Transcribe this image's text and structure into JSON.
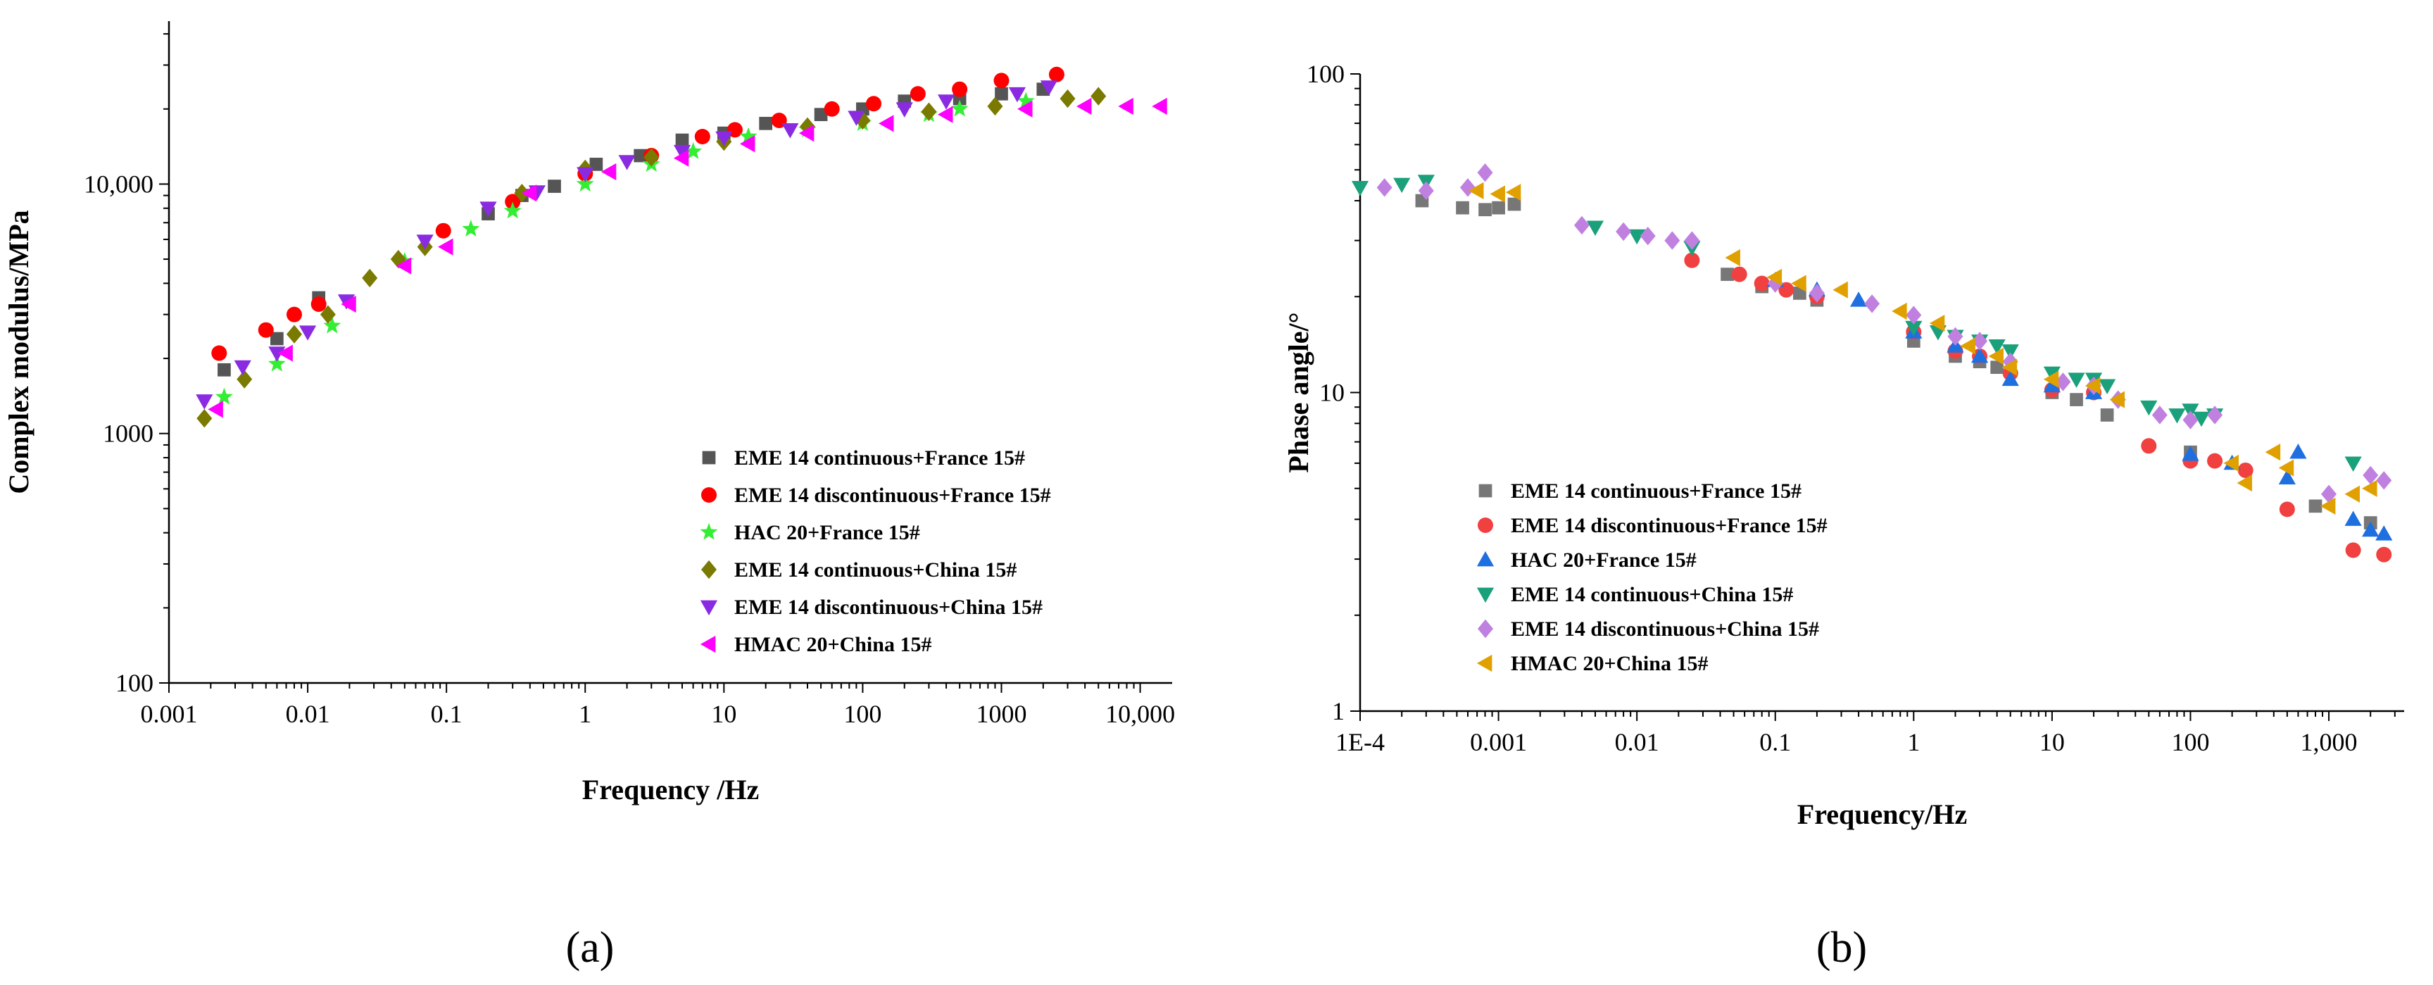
{
  "chart_data": [
    {
      "type": "scatter",
      "panel_label": "(a)",
      "xscale": "log",
      "yscale": "log",
      "xlabel": "Frequency /Hz",
      "ylabel": "Complex modulus/MPa",
      "xlim": [
        0.001,
        17000
      ],
      "ylim": [
        100,
        45000
      ],
      "xticks": [
        {
          "v": 0.001,
          "label": "0.001"
        },
        {
          "v": 0.01,
          "label": "0.01"
        },
        {
          "v": 0.1,
          "label": "0.1"
        },
        {
          "v": 1,
          "label": "1"
        },
        {
          "v": 10,
          "label": "10"
        },
        {
          "v": 100,
          "label": "100"
        },
        {
          "v": 1000,
          "label": "1000"
        },
        {
          "v": 10000,
          "label": "10,000"
        }
      ],
      "yticks": [
        {
          "v": 100,
          "label": "100"
        },
        {
          "v": 1000,
          "label": "1000"
        },
        {
          "v": 10000,
          "label": "10,000"
        }
      ],
      "legend_position": "bottom-right",
      "series": [
        {
          "name": "EME 14 continuous+France 15#",
          "marker": "square",
          "color": "#555555",
          "x": [
            0.0025,
            0.006,
            0.012,
            0.2,
            0.35,
            0.6,
            1.2,
            2.5,
            5,
            10,
            20,
            50,
            100,
            200,
            500,
            1000,
            2000
          ],
          "y": [
            1800,
            2400,
            3500,
            7600,
            9000,
            9800,
            12000,
            13000,
            15000,
            16000,
            17500,
            19000,
            20000,
            21500,
            22000,
            23000,
            24000
          ]
        },
        {
          "name": "EME 14 discontinuous+France 15#",
          "marker": "circle",
          "color": "#ff0000",
          "x": [
            0.0023,
            0.005,
            0.008,
            0.012,
            0.095,
            0.3,
            1,
            3,
            7,
            12,
            25,
            60,
            120,
            250,
            500,
            1000,
            2500
          ],
          "y": [
            2100,
            2600,
            3000,
            3300,
            6500,
            8500,
            11000,
            13000,
            15500,
            16500,
            18000,
            20000,
            21000,
            23000,
            24000,
            26000,
            27500
          ]
        },
        {
          "name": "HAC 20+France 15#",
          "marker": "star",
          "color": "#33ee33",
          "x": [
            0.0025,
            0.006,
            0.015,
            0.05,
            0.15,
            0.3,
            1,
            3,
            6,
            15,
            40,
            100,
            300,
            500,
            1500
          ],
          "y": [
            1400,
            1900,
            2700,
            4900,
            6600,
            7800,
            10000,
            12000,
            13500,
            15500,
            16500,
            17500,
            19000,
            20000,
            21500
          ]
        },
        {
          "name": "EME 14 continuous+China 15#",
          "marker": "diamond",
          "color": "#7a7a00",
          "x": [
            0.0018,
            0.0035,
            0.008,
            0.014,
            0.028,
            0.045,
            0.07,
            0.35,
            1,
            3,
            10,
            40,
            100,
            300,
            900,
            3000,
            5000
          ],
          "y": [
            1150,
            1650,
            2500,
            3000,
            4200,
            5000,
            5600,
            9200,
            11500,
            12800,
            14800,
            17000,
            18000,
            19500,
            20500,
            22000,
            22500
          ]
        },
        {
          "name": "EME 14 discontinuous+China 15#",
          "marker": "triangle-down",
          "color": "#8a2be2",
          "x": [
            0.0018,
            0.0034,
            0.006,
            0.01,
            0.019,
            0.07,
            0.2,
            0.45,
            1,
            2,
            5,
            10,
            30,
            90,
            200,
            400,
            1300,
            2200
          ],
          "y": [
            1350,
            1850,
            2100,
            2550,
            3400,
            5900,
            8000,
            9300,
            11000,
            12300,
            13500,
            15300,
            16500,
            18500,
            20000,
            21500,
            23000,
            24500
          ]
        },
        {
          "name": "HMAC 20+China 15#",
          "marker": "triangle-left",
          "color": "#ff00ff",
          "x": [
            0.0022,
            0.007,
            0.02,
            0.05,
            0.1,
            0.4,
            1.5,
            5,
            15,
            40,
            150,
            400,
            1500,
            4000,
            8000,
            14000
          ],
          "y": [
            1250,
            2100,
            3300,
            4700,
            5600,
            9200,
            11200,
            12700,
            14500,
            16000,
            17500,
            19000,
            20000,
            20500,
            20500,
            20500
          ]
        }
      ]
    },
    {
      "type": "scatter",
      "panel_label": "(b)",
      "xscale": "log",
      "yscale": "log",
      "xlabel": "Frequency/Hz",
      "ylabel": "Phase angle/°",
      "xlim": [
        0.0001,
        3500
      ],
      "ylim": [
        1,
        100
      ],
      "xticks": [
        {
          "v": 0.0001,
          "label": "1E-4"
        },
        {
          "v": 0.001,
          "label": "0.001"
        },
        {
          "v": 0.01,
          "label": "0.01"
        },
        {
          "v": 0.1,
          "label": "0.1"
        },
        {
          "v": 1,
          "label": "1"
        },
        {
          "v": 10,
          "label": "10"
        },
        {
          "v": 100,
          "label": "100"
        },
        {
          "v": 1000,
          "label": "1,000"
        }
      ],
      "yticks": [
        {
          "v": 1,
          "label": "1"
        },
        {
          "v": 10,
          "label": "10"
        },
        {
          "v": 100,
          "label": "100"
        }
      ],
      "legend_position": "bottom-left",
      "series": [
        {
          "name": "EME 14 continuous+France 15#",
          "marker": "square",
          "color": "#777777",
          "x": [
            0.00028,
            0.00055,
            0.0008,
            0.001,
            0.0013,
            0.045,
            0.08,
            0.15,
            0.2,
            1,
            2,
            3,
            4,
            10,
            15,
            25,
            100,
            800,
            2000
          ],
          "y": [
            40,
            38,
            37.5,
            38,
            39,
            23.5,
            21.5,
            20.5,
            19.5,
            14.5,
            13,
            12.5,
            12,
            10,
            9.5,
            8.5,
            6.5,
            4.4,
            3.9
          ]
        },
        {
          "name": "EME 14 discontinuous+France 15#",
          "marker": "circle",
          "color": "#f04040",
          "x": [
            0.025,
            0.055,
            0.08,
            0.12,
            0.2,
            1,
            2,
            3,
            5,
            10,
            20,
            50,
            100,
            150,
            250,
            500,
            1500,
            2500
          ],
          "y": [
            26,
            23.5,
            22,
            21,
            20,
            15.5,
            13.5,
            13,
            11.5,
            10.2,
            10,
            6.8,
            6.1,
            6.1,
            5.7,
            4.3,
            3.2,
            3.1
          ]
        },
        {
          "name": "HAC 20+France 15#",
          "marker": "triangle-up",
          "color": "#1e6fe0",
          "x": [
            0.1,
            0.2,
            0.4,
            1,
            2,
            3,
            5,
            10,
            20,
            100,
            200,
            500,
            600,
            1500,
            2000,
            2500
          ],
          "y": [
            22.5,
            21,
            19.5,
            15.5,
            14,
            13,
            11,
            10.5,
            10,
            6.4,
            6,
            5.4,
            6.5,
            4,
            3.7,
            3.6
          ]
        },
        {
          "name": "EME 14 continuous+China 15#",
          "marker": "triangle-down",
          "color": "#1aa07a",
          "x": [
            0.0001,
            0.0002,
            0.0003,
            0.005,
            0.01,
            0.025,
            1,
            1.5,
            2,
            3,
            4,
            5,
            10,
            15,
            20,
            25,
            50,
            80,
            100,
            120,
            150,
            1500
          ],
          "y": [
            44,
            45,
            46,
            33,
            31,
            28.5,
            16,
            15.5,
            15,
            14.5,
            14,
            13.5,
            11.5,
            11,
            11,
            10.5,
            9,
            8.5,
            8.8,
            8.3,
            8.5,
            6
          ]
        },
        {
          "name": "EME 14 discontinuous+China 15#",
          "marker": "diamond",
          "color": "#c080e0",
          "x": [
            0.00015,
            0.0003,
            0.0006,
            0.0008,
            0.004,
            0.008,
            0.012,
            0.018,
            0.025,
            0.1,
            0.2,
            0.5,
            1,
            2,
            3,
            5,
            12,
            20,
            30,
            60,
            100,
            150,
            1000,
            2000,
            2500
          ],
          "y": [
            44,
            43,
            44,
            49,
            33.5,
            32,
            31,
            30,
            30,
            22,
            20.5,
            19,
            17.5,
            15,
            14.5,
            12.5,
            10.8,
            10.5,
            9.5,
            8.5,
            8.2,
            8.5,
            4.8,
            5.5,
            5.3
          ]
        },
        {
          "name": "HMAC 20+China 15#",
          "marker": "triangle-left",
          "color": "#e0a000",
          "x": [
            0.0007,
            0.001,
            0.0013,
            0.05,
            0.1,
            0.15,
            0.3,
            0.8,
            1.5,
            2.5,
            4,
            5,
            10,
            20,
            30,
            200,
            250,
            400,
            500,
            1000,
            1500,
            2000
          ],
          "y": [
            43,
            42,
            42.5,
            26.5,
            23,
            22,
            21,
            18,
            16.5,
            14,
            13,
            12,
            11,
            10.5,
            9.5,
            6,
            5.2,
            6.5,
            5.8,
            4.4,
            4.8,
            5
          ]
        }
      ]
    }
  ]
}
